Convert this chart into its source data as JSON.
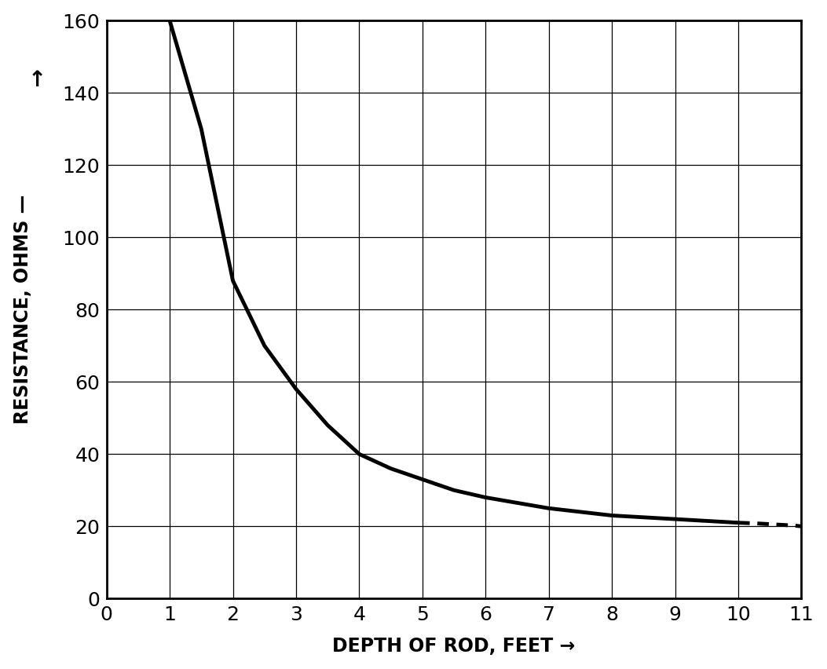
{
  "xlabel": "DEPTH OF ROD, FEET —►",
  "ylabel_line1": "↑",
  "ylabel_line2": "RESISTANCE,OHMS —",
  "xlim": [
    0,
    11
  ],
  "ylim": [
    0,
    160
  ],
  "xticks": [
    0,
    1,
    2,
    3,
    4,
    5,
    6,
    7,
    8,
    9,
    10,
    11
  ],
  "yticks": [
    0,
    20,
    40,
    60,
    80,
    100,
    120,
    140,
    160
  ],
  "curve_x_solid": [
    1.0,
    1.2,
    1.5,
    2.0,
    2.5,
    3.0,
    3.5,
    4.0,
    4.5,
    5.0,
    5.5,
    6.0,
    6.5,
    7.0,
    7.5,
    8.0,
    8.5,
    9.0,
    9.5,
    10.0
  ],
  "curve_y_solid": [
    160,
    148,
    130,
    88,
    70,
    58,
    48,
    40,
    36,
    33,
    30,
    28,
    26.5,
    25,
    24,
    23,
    22.5,
    22,
    21.5,
    21
  ],
  "curve_x_dashed": [
    10.0,
    10.3,
    10.6,
    10.9,
    11.0
  ],
  "curve_y_dashed": [
    21,
    20.8,
    20.5,
    20.2,
    20
  ],
  "line_color": "#000000",
  "line_width": 3.5,
  "background_color": "#ffffff",
  "grid_color": "#000000",
  "grid_linewidth": 0.9,
  "tick_fontsize": 18,
  "label_fontsize": 17,
  "spine_linewidth": 2.0
}
